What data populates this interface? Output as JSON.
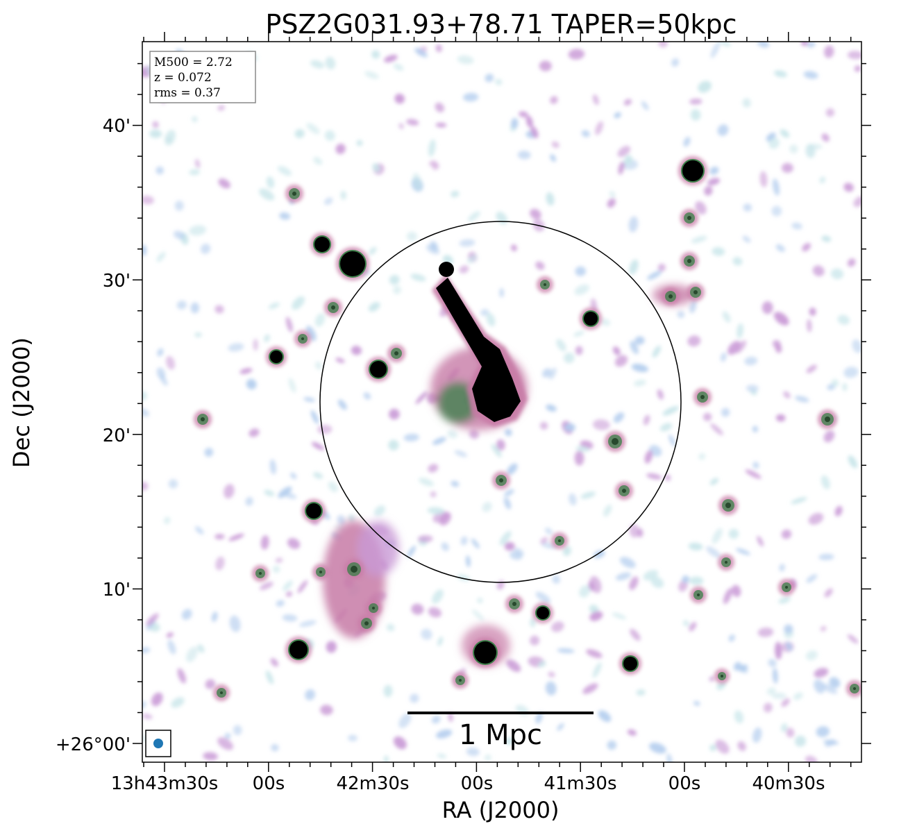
{
  "chart_data": {
    "type": "heatmap",
    "title": "PSZ2G031.93+78.71 TAPER=50kpc",
    "xlabel": "RA (J2000)",
    "ylabel": "Dec (J2000)",
    "x_ticks": [
      "13h43m30s",
      "00s",
      "42m30s",
      "00s",
      "41m30s",
      "00s",
      "40m30s"
    ],
    "y_ticks": [
      "+26°00'",
      "10'",
      "20'",
      "30'",
      "40'"
    ],
    "info_box": {
      "line1": "M500 = 2.72",
      "line2": "z = 0.072",
      "line3": "rms = 0.37"
    },
    "scale_bar_label": "1 Mpc",
    "colormap": [
      "#ffffff",
      "#c9e6ea",
      "#b3cdee",
      "#c99ad6",
      "#c77aa6",
      "#2e7d3e",
      "#000000"
    ],
    "circle_color": "#000000",
    "beam_color": "#1f77b4"
  }
}
